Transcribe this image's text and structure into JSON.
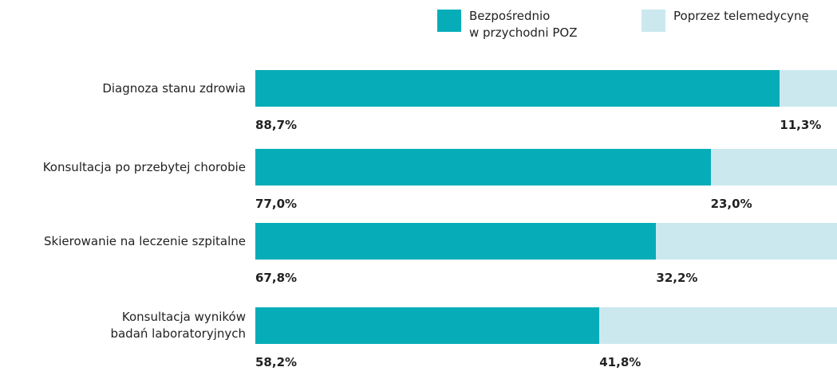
{
  "chart_data": {
    "type": "stacked_bar_horizontal",
    "categories": [
      "Diagnoza stanu zdrowia",
      "Konsultacja po przebytej chorobie",
      "Skierowanie na leczenie szpitalne",
      "Konsultacja wyników\nbadań laboratoryjnych"
    ],
    "series": [
      {
        "name": "Bezpośrednio\nw przychodni POZ",
        "color": "#06adb8",
        "values": [
          88.7,
          77.0,
          67.8,
          58.2
        ],
        "value_labels": [
          "88,7%",
          "77,0%",
          "67,8%",
          "58,2%"
        ]
      },
      {
        "name": "Poprzez telemedycynę",
        "color": "#cbe8ef",
        "values": [
          11.3,
          23.0,
          32.2,
          41.8
        ],
        "value_labels": [
          "11,3%",
          "23,0%",
          "32,2%",
          "41,8%"
        ]
      }
    ],
    "xlim": [
      0,
      100
    ]
  }
}
